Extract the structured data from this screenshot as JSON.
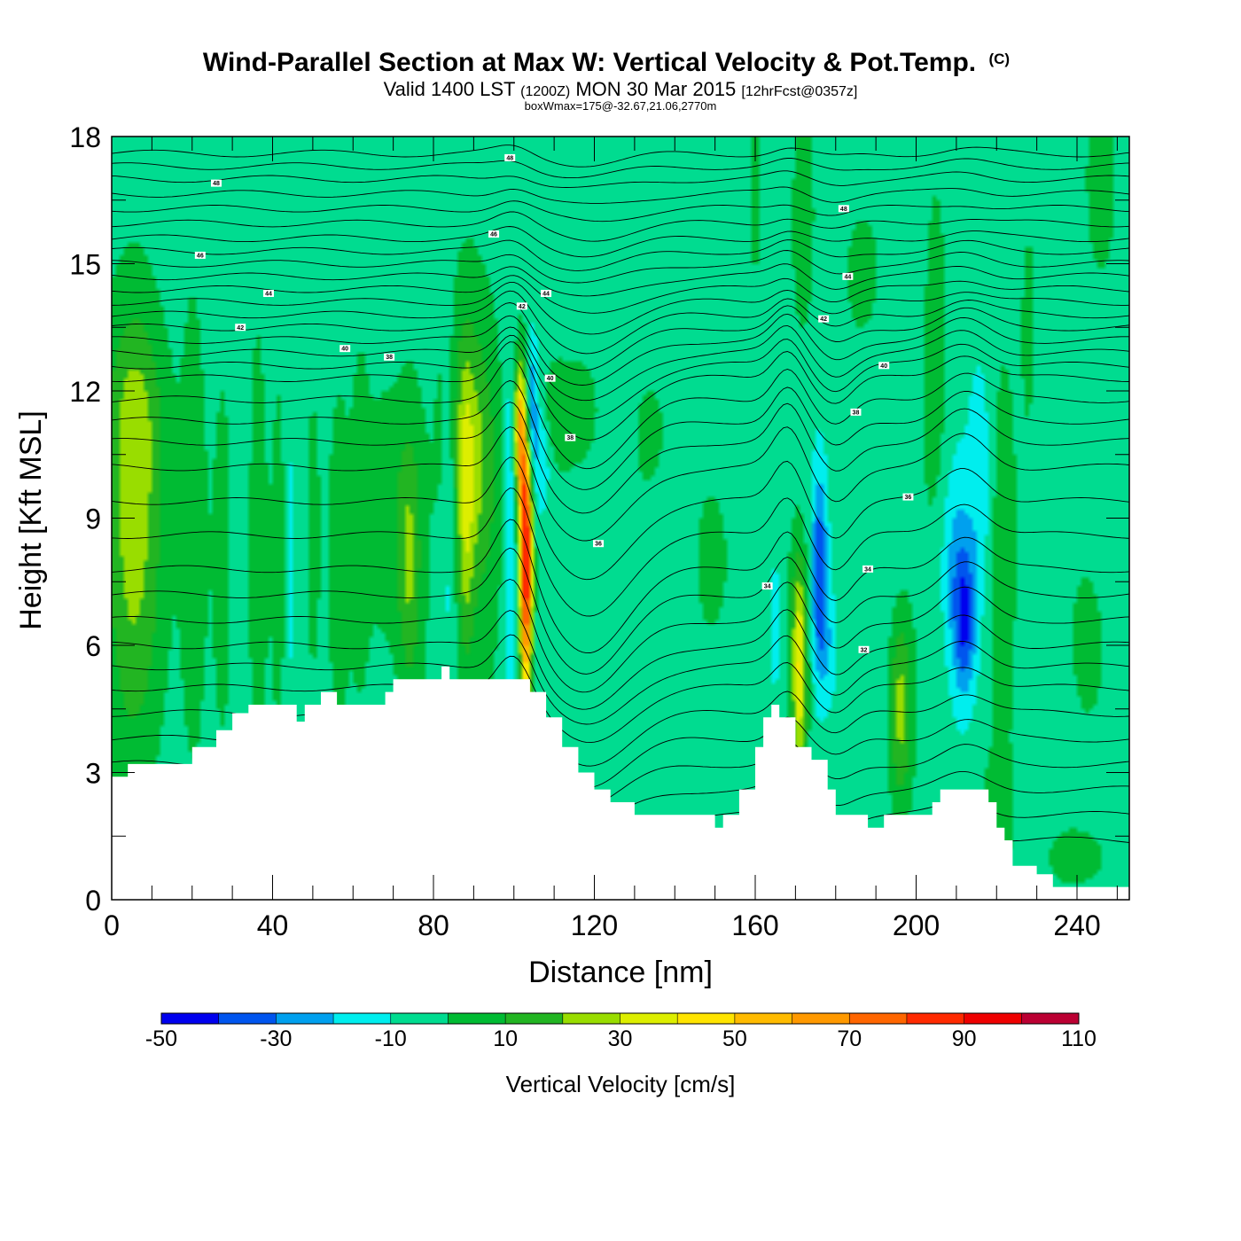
{
  "header": {
    "title": "Wind-Parallel Section at Max W: Vertical Velocity & Pot.Temp.",
    "copyright": "(C)",
    "valid_prefix": "Valid 1400 LST",
    "valid_utc": "(1200Z)",
    "valid_date": "MON 30 Mar 2015",
    "forecast": "[12hrFcst@0357z]",
    "box_wmax": "boxWmax=175@-32.67,21.06,2770m"
  },
  "colorbar": {
    "label": "Vertical Velocity [cm/s]",
    "tick_labels": [
      "-50",
      "-30",
      "-10",
      "10",
      "30",
      "50",
      "70",
      "90",
      "110"
    ],
    "colors": [
      "#0000ee",
      "#0055ee",
      "#00a0ee",
      "#00eeee",
      "#00dc90",
      "#00bb33",
      "#22b522",
      "#99dd00",
      "#ddee00",
      "#ffe400",
      "#ffbb00",
      "#ff9900",
      "#ff6600",
      "#ff2a00",
      "#ee0000",
      "#bb0033"
    ]
  },
  "chart_data": {
    "type": "heatmap",
    "title": "Wind-Parallel Section at Max W: Vertical Velocity & Pot.Temp.",
    "xlabel": "Distance [nm]",
    "ylabel": "Height [Kft MSL]",
    "xlim": [
      0,
      253
    ],
    "ylim": [
      0,
      18
    ],
    "x_ticks": [
      0,
      40,
      80,
      120,
      160,
      200,
      240
    ],
    "y_ticks": [
      0,
      3,
      6,
      9,
      12,
      15,
      18
    ],
    "colorbar_range": [
      -50,
      110
    ],
    "colorbar_step": 10,
    "background_value": -5,
    "terrain": [
      [
        0,
        2.9
      ],
      [
        4,
        3.2
      ],
      [
        20,
        3.6
      ],
      [
        26,
        4.0
      ],
      [
        30,
        4.4
      ],
      [
        34,
        4.6
      ],
      [
        44,
        4.6
      ],
      [
        46,
        4.2
      ],
      [
        48,
        4.6
      ],
      [
        52,
        4.9
      ],
      [
        56,
        4.6
      ],
      [
        64,
        4.6
      ],
      [
        68,
        4.9
      ],
      [
        70,
        5.2
      ],
      [
        80,
        5.2
      ],
      [
        82,
        5.5
      ],
      [
        84,
        5.2
      ],
      [
        100,
        5.2
      ],
      [
        104,
        4.9
      ],
      [
        108,
        4.3
      ],
      [
        112,
        3.6
      ],
      [
        116,
        3.0
      ],
      [
        120,
        2.6
      ],
      [
        124,
        2.3
      ],
      [
        130,
        2.0
      ],
      [
        148,
        2.0
      ],
      [
        150,
        1.7
      ],
      [
        152,
        2.0
      ],
      [
        156,
        2.6
      ],
      [
        160,
        3.6
      ],
      [
        162,
        4.3
      ],
      [
        164,
        4.6
      ],
      [
        166,
        4.3
      ],
      [
        170,
        3.6
      ],
      [
        174,
        3.3
      ],
      [
        178,
        2.6
      ],
      [
        180,
        2.0
      ],
      [
        186,
        2.0
      ],
      [
        188,
        1.7
      ],
      [
        192,
        2.0
      ],
      [
        200,
        2.0
      ],
      [
        204,
        2.3
      ],
      [
        206,
        2.6
      ],
      [
        216,
        2.6
      ],
      [
        218,
        2.3
      ],
      [
        220,
        1.7
      ],
      [
        222,
        1.4
      ],
      [
        224,
        0.8
      ],
      [
        230,
        0.6
      ],
      [
        234,
        0.3
      ],
      [
        253,
        0.4
      ]
    ],
    "w_features": [
      {
        "x": 6,
        "y": 8.5,
        "sx": 6,
        "sy": 3.6,
        "w": 26
      },
      {
        "x": 6,
        "y": 11.5,
        "sx": 5,
        "sy": 1.6,
        "w": 12
      },
      {
        "x": 20,
        "y": 9,
        "sx": 2,
        "sy": 4,
        "w": 9
      },
      {
        "x": 28,
        "y": 8,
        "sx": 2,
        "sy": 4,
        "w": 9
      },
      {
        "x": 36,
        "y": 8,
        "sx": 1.5,
        "sy": 4,
        "w": 12
      },
      {
        "x": 42,
        "y": 8,
        "sx": 1.5,
        "sy": 3,
        "w": 8
      },
      {
        "x": 44,
        "y": 8,
        "sx": 1,
        "sy": 2.5,
        "w": -12
      },
      {
        "x": 50,
        "y": 8.5,
        "sx": 1.5,
        "sy": 3,
        "w": 12
      },
      {
        "x": 56,
        "y": 8,
        "sx": 2,
        "sy": 3,
        "w": 8
      },
      {
        "x": 62,
        "y": 9,
        "sx": 1.5,
        "sy": 3,
        "w": 8
      },
      {
        "x": 68,
        "y": 9,
        "sx": 4,
        "sy": 2.5,
        "w": 14
      },
      {
        "x": 74,
        "y": 8,
        "sx": 2,
        "sy": 2.2,
        "w": 22
      },
      {
        "x": 84,
        "y": 9,
        "sx": 1.2,
        "sy": 3,
        "w": -12
      },
      {
        "x": 88,
        "y": 11,
        "sx": 4,
        "sy": 2,
        "w": 12
      },
      {
        "x": 88,
        "y": 10,
        "sx": 5,
        "sy": 4,
        "w": 10
      },
      {
        "x": 88,
        "y": 9,
        "sx": 1.5,
        "sy": 2.5,
        "w": 22
      },
      {
        "x": 92,
        "y": 10,
        "sx": 3,
        "sy": 2,
        "w": 10
      },
      {
        "x": 99,
        "y": 8.5,
        "sx": 1,
        "sy": 3,
        "w": -16
      },
      {
        "x": 103,
        "y": 8,
        "sx": 1.1,
        "sy": 2.4,
        "w": 105
      },
      {
        "x": 101.5,
        "y": 11,
        "sx": 1,
        "sy": 1.2,
        "w": 60
      },
      {
        "x": 104,
        "y": 11.5,
        "sx": 1.2,
        "sy": 1.2,
        "w": -35
      },
      {
        "x": 107,
        "y": 10.5,
        "sx": 1.5,
        "sy": 0.9,
        "w": -15
      },
      {
        "x": 110,
        "y": 11.5,
        "sx": 3,
        "sy": 0.8,
        "w": 12
      },
      {
        "x": 118,
        "y": 11.5,
        "sx": 3,
        "sy": 1,
        "w": 10
      },
      {
        "x": 135,
        "y": 11,
        "sx": 3,
        "sy": 1,
        "w": 8
      },
      {
        "x": 150,
        "y": 8,
        "sx": 3,
        "sy": 1,
        "w": 8
      },
      {
        "x": 165,
        "y": 6.5,
        "sx": 1.2,
        "sy": 1.5,
        "w": -12
      },
      {
        "x": 171,
        "y": 5.5,
        "sx": 1.4,
        "sy": 1.8,
        "w": 48
      },
      {
        "x": 176,
        "y": 7.8,
        "sx": 1.3,
        "sy": 1.5,
        "w": -32
      },
      {
        "x": 178,
        "y": 6,
        "sx": 2,
        "sy": 1,
        "w": -12
      },
      {
        "x": 160,
        "y": 16.5,
        "sx": 1,
        "sy": 1.5,
        "w": 10
      },
      {
        "x": 172,
        "y": 16,
        "sx": 2,
        "sy": 2,
        "w": 12
      },
      {
        "x": 187,
        "y": 14.8,
        "sx": 3,
        "sy": 1,
        "w": 10
      },
      {
        "x": 196,
        "y": 4.5,
        "sx": 2,
        "sy": 1.6,
        "w": 30
      },
      {
        "x": 205,
        "y": 13,
        "sx": 2,
        "sy": 3,
        "w": 10
      },
      {
        "x": 212,
        "y": 6.5,
        "sx": 2,
        "sy": 1.2,
        "w": -30
      },
      {
        "x": 210,
        "y": 8,
        "sx": 3,
        "sy": 1.5,
        "w": -14
      },
      {
        "x": 216,
        "y": 10,
        "sx": 2,
        "sy": 2,
        "w": -12
      },
      {
        "x": 222,
        "y": 8,
        "sx": 2,
        "sy": 3,
        "w": 12
      },
      {
        "x": 244,
        "y": 6,
        "sx": 3,
        "sy": 1.5,
        "w": 10
      },
      {
        "x": 246,
        "y": 17,
        "sx": 3,
        "sy": 2,
        "w": 10
      },
      {
        "x": 228,
        "y": 13,
        "sx": 2,
        "sy": 3,
        "w": 8
      },
      {
        "x": 220,
        "y": 2,
        "sx": 3,
        "sy": 1,
        "w": 10
      },
      {
        "x": 240,
        "y": 1,
        "sx": 6,
        "sy": 0.5,
        "w": 10
      }
    ],
    "isentropes": [
      {
        "y": 17.6,
        "amp": 0.2
      },
      {
        "y": 17.3,
        "amp": 0.2
      },
      {
        "y": 17.0,
        "amp": 0.2
      },
      {
        "y": 16.65,
        "amp": 0.25
      },
      {
        "y": 16.3,
        "amp": 0.25
      },
      {
        "y": 15.95,
        "amp": 0.3
      },
      {
        "y": 15.6,
        "amp": 0.3
      },
      {
        "y": 15.3,
        "amp": 0.35
      },
      {
        "y": 15.0,
        "amp": 0.4
      },
      {
        "y": 14.7,
        "amp": 0.45
      },
      {
        "y": 14.4,
        "amp": 0.5
      },
      {
        "y": 14.1,
        "amp": 0.6
      },
      {
        "y": 13.8,
        "amp": 0.7
      },
      {
        "y": 13.5,
        "amp": 0.8
      },
      {
        "y": 13.2,
        "amp": 0.9
      },
      {
        "y": 12.9,
        "amp": 1.0
      },
      {
        "y": 12.6,
        "amp": 1.1
      },
      {
        "y": 12.3,
        "amp": 1.2
      },
      {
        "y": 11.8,
        "amp": 1.3
      },
      {
        "y": 11.3,
        "amp": 1.3
      },
      {
        "y": 10.8,
        "amp": 1.4
      },
      {
        "y": 10.2,
        "amp": 1.5
      },
      {
        "y": 9.4,
        "amp": 1.6
      },
      {
        "y": 8.6,
        "amp": 1.6
      },
      {
        "y": 7.8,
        "amp": 1.6
      },
      {
        "y": 7.2,
        "amp": 1.5
      },
      {
        "y": 6.6,
        "amp": 1.4
      },
      {
        "y": 6.0,
        "amp": 1.3
      },
      {
        "y": 5.5,
        "amp": 1.2
      },
      {
        "y": 5.0,
        "amp": 1.1
      },
      {
        "y": 4.4,
        "amp": 1.0
      },
      {
        "y": 3.8,
        "amp": 0.9
      },
      {
        "y": 3.2,
        "amp": 0.8
      },
      {
        "y": 2.6,
        "amp": 0.7
      },
      {
        "y": 2.0,
        "amp": 0.6
      },
      {
        "y": 1.4,
        "amp": 0.5
      }
    ],
    "contour_labels": [
      {
        "text": "48",
        "x": 99,
        "y": 17.5
      },
      {
        "text": "48",
        "x": 26,
        "y": 16.9
      },
      {
        "text": "48",
        "x": 182,
        "y": 16.3
      },
      {
        "text": "46",
        "x": 95,
        "y": 15.7
      },
      {
        "text": "46",
        "x": 22,
        "y": 15.2
      },
      {
        "text": "44",
        "x": 108,
        "y": 14.3
      },
      {
        "text": "44",
        "x": 39,
        "y": 14.3
      },
      {
        "text": "44",
        "x": 183,
        "y": 14.7
      },
      {
        "text": "42",
        "x": 102,
        "y": 14.0
      },
      {
        "text": "42",
        "x": 32,
        "y": 13.5
      },
      {
        "text": "42",
        "x": 177,
        "y": 13.7
      },
      {
        "text": "40",
        "x": 58,
        "y": 13.0
      },
      {
        "text": "40",
        "x": 109,
        "y": 12.3
      },
      {
        "text": "40",
        "x": 192,
        "y": 12.6
      },
      {
        "text": "38",
        "x": 69,
        "y": 12.8
      },
      {
        "text": "38",
        "x": 114,
        "y": 10.9
      },
      {
        "text": "38",
        "x": 185,
        "y": 11.5
      },
      {
        "text": "36",
        "x": 198,
        "y": 9.5
      },
      {
        "text": "36",
        "x": 121,
        "y": 8.4
      },
      {
        "text": "34",
        "x": 163,
        "y": 7.4
      },
      {
        "text": "34",
        "x": 188,
        "y": 7.8
      },
      {
        "text": "32",
        "x": 187,
        "y": 5.9
      }
    ]
  }
}
